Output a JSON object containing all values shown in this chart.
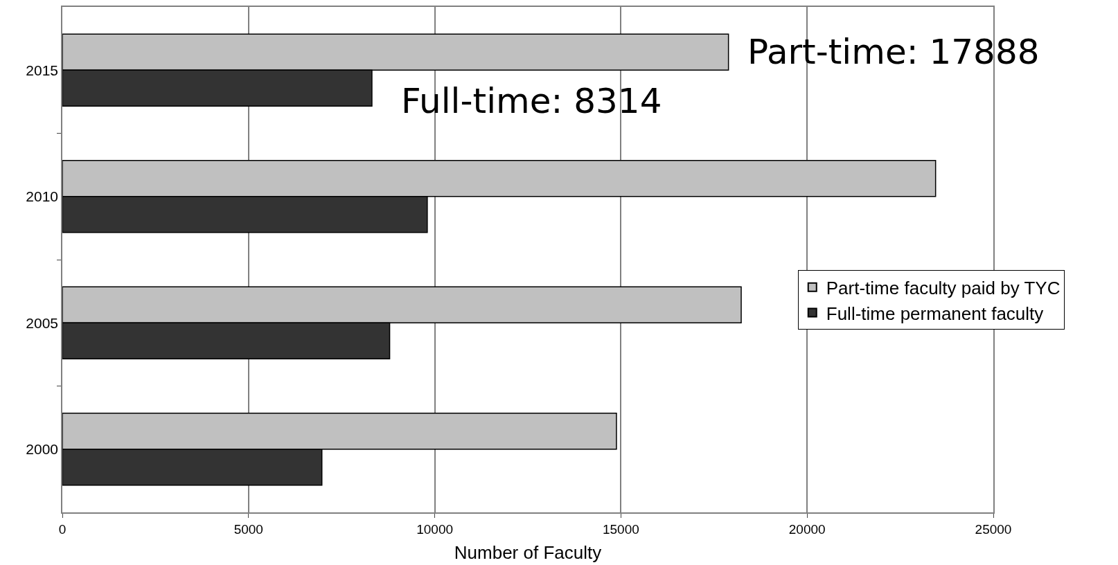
{
  "chart_data": {
    "type": "bar",
    "orientation": "horizontal",
    "xlabel": "Number of Faculty",
    "categories": [
      "2015",
      "2010",
      "2005",
      "2000"
    ],
    "series": [
      {
        "name": "Part-time faculty paid by TYC",
        "color": "#c0c0c0",
        "values": [
          17888,
          23450,
          18230,
          14880
        ]
      },
      {
        "name": "Full-time permanent faculty",
        "color": "#333333",
        "values": [
          8314,
          9800,
          8790,
          6970
        ]
      }
    ],
    "xlim": [
      0,
      25000
    ],
    "xticks": [
      0,
      5000,
      10000,
      15000,
      20000,
      25000
    ],
    "grid": "x",
    "legend": "right",
    "annotations": [
      {
        "text": "Part-time: 17888",
        "x": 17888,
        "y": "2015"
      },
      {
        "text": "Full-time: 8314",
        "x": 8314,
        "y": "2015"
      }
    ]
  }
}
